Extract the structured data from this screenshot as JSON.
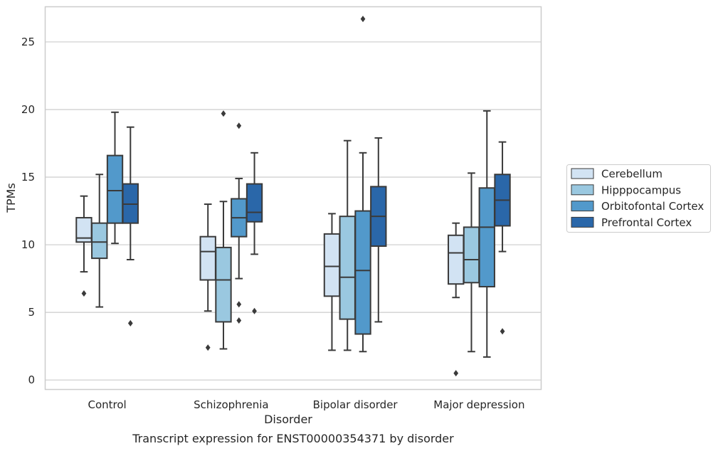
{
  "chart_data": {
    "type": "box",
    "title": "",
    "caption": "Transcript expression for ENST00000354371 by disorder",
    "xlabel": "Disorder",
    "ylabel": "TPMs",
    "ylim": [
      -0.7,
      27.6
    ],
    "yticks": [
      0,
      5,
      10,
      15,
      20,
      25
    ],
    "grid": "horizontal",
    "legend_position": "right",
    "categories": [
      "Control",
      "Schizophrenia",
      "Bipolar disorder",
      "Major depression"
    ],
    "series": [
      {
        "name": "Cerebellum",
        "color": "#d2e3f3",
        "boxes": [
          {
            "whislo": 8.0,
            "q1": 10.2,
            "med": 10.5,
            "q3": 12.0,
            "whishi": 13.6,
            "fliers": [
              6.4
            ]
          },
          {
            "whislo": 5.1,
            "q1": 7.4,
            "med": 9.5,
            "q3": 10.6,
            "whishi": 13.0,
            "fliers": [
              2.4
            ]
          },
          {
            "whislo": 2.2,
            "q1": 6.2,
            "med": 8.4,
            "q3": 10.8,
            "whishi": 12.3,
            "fliers": []
          },
          {
            "whislo": 6.1,
            "q1": 7.1,
            "med": 9.4,
            "q3": 10.7,
            "whishi": 11.6,
            "fliers": [
              0.5
            ]
          }
        ]
      },
      {
        "name": "Hipppocampus",
        "color": "#9ac8e0",
        "boxes": [
          {
            "whislo": 5.4,
            "q1": 9.0,
            "med": 10.2,
            "q3": 11.6,
            "whishi": 15.2,
            "fliers": []
          },
          {
            "whislo": 2.3,
            "q1": 4.3,
            "med": 7.4,
            "q3": 9.8,
            "whishi": 13.2,
            "fliers": [
              19.7
            ]
          },
          {
            "whislo": 2.2,
            "q1": 4.5,
            "med": 7.6,
            "q3": 12.1,
            "whishi": 17.7,
            "fliers": []
          },
          {
            "whislo": 2.1,
            "q1": 7.2,
            "med": 8.9,
            "q3": 11.3,
            "whishi": 15.3,
            "fliers": []
          }
        ]
      },
      {
        "name": "Orbitofontal Cortex",
        "color": "#5299cb",
        "boxes": [
          {
            "whislo": 10.1,
            "q1": 11.6,
            "med": 14.0,
            "q3": 16.6,
            "whishi": 19.8,
            "fliers": []
          },
          {
            "whislo": 7.5,
            "q1": 10.6,
            "med": 12.0,
            "q3": 13.4,
            "whishi": 14.9,
            "fliers": [
              18.8,
              5.6,
              4.4
            ]
          },
          {
            "whislo": 2.1,
            "q1": 3.4,
            "med": 8.1,
            "q3": 12.5,
            "whishi": 16.8,
            "fliers": [
              26.7
            ]
          },
          {
            "whislo": 1.7,
            "q1": 6.9,
            "med": 11.3,
            "q3": 14.2,
            "whishi": 19.9,
            "fliers": []
          }
        ]
      },
      {
        "name": "Prefrontal Cortex",
        "color": "#2a67a9",
        "boxes": [
          {
            "whislo": 8.9,
            "q1": 11.6,
            "med": 13.0,
            "q3": 14.5,
            "whishi": 18.7,
            "fliers": [
              4.2
            ]
          },
          {
            "whislo": 9.3,
            "q1": 11.7,
            "med": 12.4,
            "q3": 14.5,
            "whishi": 16.8,
            "fliers": [
              5.1
            ]
          },
          {
            "whislo": 4.3,
            "q1": 9.9,
            "med": 12.1,
            "q3": 14.3,
            "whishi": 17.9,
            "fliers": []
          },
          {
            "whislo": 9.5,
            "q1": 11.4,
            "med": 13.3,
            "q3": 15.2,
            "whishi": 17.6,
            "fliers": [
              3.6
            ]
          }
        ]
      }
    ]
  }
}
